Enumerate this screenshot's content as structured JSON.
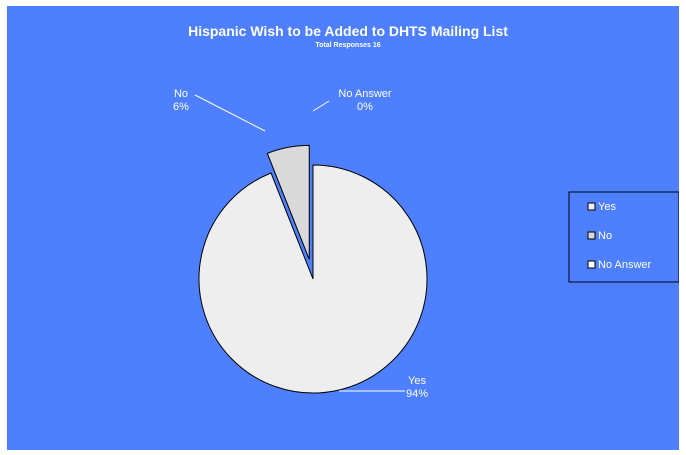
{
  "chart_data": {
    "type": "pie",
    "title": "Hispanic Wish to be Added to DHTS Mailing List",
    "subtitle": "Total Responses 16",
    "slices": [
      {
        "label": "Yes",
        "value": 94,
        "percent_label": "94%",
        "color": "#eeeeee",
        "exploded": false
      },
      {
        "label": "No",
        "value": 6,
        "percent_label": "6%",
        "color": "#d9d9d9",
        "exploded": true
      },
      {
        "label": "No Answer",
        "value": 0,
        "percent_label": "0%",
        "color": "#ffffff",
        "exploded": true
      }
    ],
    "legend": {
      "position": "right",
      "entries": [
        "Yes",
        "No",
        "No Answer"
      ]
    },
    "colors": {
      "background": "#4d7fff",
      "outline": "#000000",
      "text": "#ffffff"
    }
  }
}
